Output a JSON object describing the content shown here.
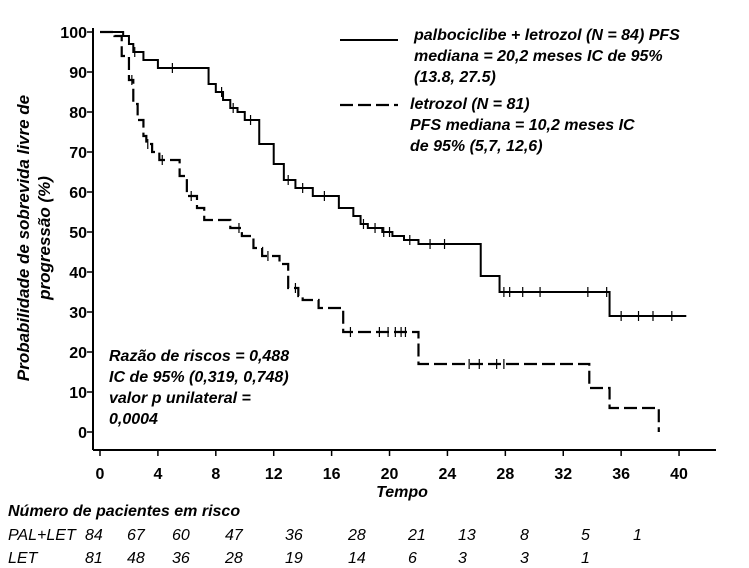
{
  "chart_data": {
    "type": "line",
    "ylabel_lines": [
      "Probabilidade de sobrevida livre de",
      "progressão (%)"
    ],
    "xlabel": "Tempo",
    "xlim": [
      0,
      42
    ],
    "ylim": [
      0,
      100
    ],
    "xticks": [
      0,
      4,
      8,
      12,
      16,
      20,
      24,
      28,
      32,
      36,
      40
    ],
    "yticks": [
      0,
      10,
      20,
      30,
      40,
      50,
      60,
      70,
      80,
      90,
      100
    ],
    "ytick_labels": [
      "0",
      "10",
      "20",
      "30",
      "40",
      "50",
      "60",
      "70",
      "80",
      "90",
      "100"
    ],
    "series": [
      {
        "name": "palbociclibe + letrozol (N = 84)",
        "style": "solid",
        "legend_lines": [
          "palbociclibe + letrozol (N = 84) PFS",
          "mediana = 20,2 meses IC de 95%",
          "(13.8, 27.5)"
        ],
        "x": [
          0,
          1.6,
          2.0,
          2.3,
          3.0,
          4.0,
          5.1,
          7.5,
          8.0,
          8.5,
          9.0,
          9.5,
          10.0,
          11.0,
          12.0,
          12.7,
          13.5,
          14.7,
          16.5,
          17.5,
          18.0,
          18.5,
          19.5,
          20.2,
          21.0,
          22.0,
          26.3,
          27.6,
          29.0,
          35.2,
          40.5
        ],
        "y": [
          100,
          99,
          97,
          95,
          93,
          91,
          91,
          87,
          85,
          83,
          81,
          80,
          78,
          72,
          67,
          63,
          61,
          59,
          56,
          54,
          52,
          51,
          50,
          49,
          48,
          47,
          39,
          35,
          35,
          29,
          29
        ],
        "censor_x": [
          2.4,
          5.0,
          8.4,
          9.2,
          10.4,
          13.0,
          14.0,
          15.5,
          18.2,
          19.0,
          19.6,
          20.0,
          21.4,
          22.8,
          23.8,
          27.9,
          28.3,
          29.2,
          30.4,
          33.7,
          35.0,
          36.0,
          37.2,
          38.2,
          39.5
        ]
      },
      {
        "name": "letrozol (N = 81)",
        "style": "dashed",
        "legend_lines": [
          "letrozol (N = 81)",
          "PFS mediana = 10,2 meses IC",
          "de 95% (5,7, 12,6)"
        ],
        "x": [
          0,
          1.0,
          1.5,
          2.0,
          2.3,
          2.6,
          3.0,
          3.2,
          3.6,
          4.1,
          5.5,
          6.0,
          6.7,
          7.2,
          9.0,
          9.8,
          10.6,
          11.2,
          12.4,
          13.0,
          13.7,
          14.0,
          15.1,
          16.8,
          17.5,
          18.5,
          22.0,
          33.8,
          35.2,
          38.2,
          38.6
        ],
        "y": [
          100,
          99,
          94,
          88,
          82,
          78,
          74,
          72,
          70,
          68,
          64,
          59,
          56,
          53,
          51,
          49,
          46,
          44,
          42,
          36,
          34,
          33,
          31,
          25,
          25,
          25,
          17,
          11,
          6,
          6,
          0
        ],
        "censor_x": [
          2.2,
          3.3,
          4.3,
          6.3,
          9.6,
          11.6,
          13.5,
          17.3,
          19.3,
          19.9,
          20.4,
          20.8,
          21.1,
          25.5,
          26.2,
          27.4,
          27.9
        ]
      }
    ],
    "annotation_lines": [
      "Razão de riscos = 0,488",
      "IC de 95% (0,319, 0,748)",
      "valor p unilateral =",
      "0,0004"
    ],
    "risk_table": {
      "title": "Número de pacientes em risco",
      "rows": [
        {
          "label": "PAL+LET",
          "values": [
            "84",
            "67",
            "60",
            "47",
            "36",
            "28",
            "21",
            "13",
            "8",
            "5",
            "1"
          ]
        },
        {
          "label": "LET",
          "values": [
            "81",
            "48",
            "36",
            "28",
            "19",
            "14",
            "6",
            "3",
            "3",
            "1"
          ]
        }
      ]
    }
  }
}
